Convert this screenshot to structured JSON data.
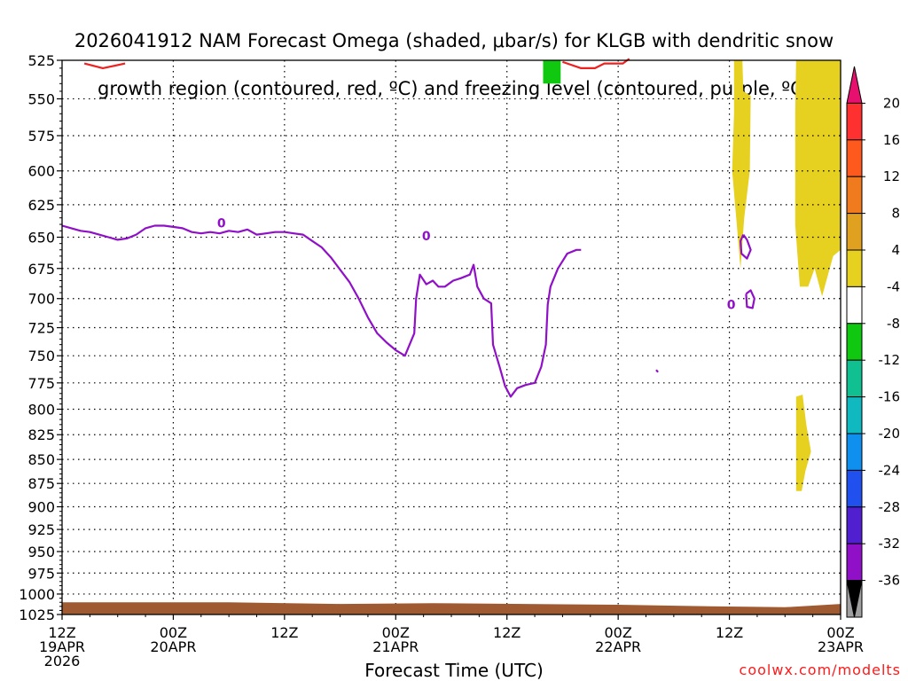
{
  "title": {
    "line1": "2026041912 NAM Forecast Omega (shaded, μbar/s) for KLGB with dendritic snow",
    "line2": "growth region (contoured, red, ºC) and freezing level (contoured, purple, ºC)"
  },
  "xlabel": "Forecast Time (UTC)",
  "credit": "coolwx.com/modelts",
  "chart_data": {
    "type": "heatmap",
    "title": "2026041912 NAM Forecast Omega (shaded, μbar/s) for KLGB with dendritic snow growth region (contoured, red, ºC) and freezing level (contoured, purple, ºC)",
    "xlabel": "Forecast Time (UTC)",
    "x_unit": "hours from 2026-04-19 12Z",
    "xlim": [
      0,
      84
    ],
    "ylim": [
      1025,
      525
    ],
    "y_scale": "log (pressure, hPa)",
    "grid": true,
    "x_ticks": [
      {
        "hour": 0,
        "label": "12Z",
        "label2": "19APR",
        "label3": "2026"
      },
      {
        "hour": 12,
        "label": "00Z",
        "label2": "20APR",
        "label3": ""
      },
      {
        "hour": 24,
        "label": "12Z",
        "label2": "",
        "label3": ""
      },
      {
        "hour": 36,
        "label": "00Z",
        "label2": "21APR",
        "label3": ""
      },
      {
        "hour": 48,
        "label": "12Z",
        "label2": "",
        "label3": ""
      },
      {
        "hour": 60,
        "label": "00Z",
        "label2": "22APR",
        "label3": ""
      },
      {
        "hour": 72,
        "label": "12Z",
        "label2": "",
        "label3": ""
      },
      {
        "hour": 84,
        "label": "00Z",
        "label2": "23APR",
        "label3": ""
      }
    ],
    "y_ticks": [
      525,
      550,
      575,
      600,
      625,
      650,
      675,
      700,
      725,
      750,
      775,
      800,
      825,
      850,
      875,
      900,
      925,
      950,
      975,
      1000,
      1025
    ],
    "colorbar": {
      "labels": [
        "20",
        "16",
        "12",
        "8",
        "4",
        "-4",
        "-8",
        "-12",
        "-16",
        "-20",
        "-24",
        "-28",
        "-32",
        "-36"
      ],
      "colors": [
        "#e8106e",
        "#ff3030",
        "#ff5a1e",
        "#f07a1e",
        "#e0a020",
        "#e6d020",
        "#ffffff",
        "#10c810",
        "#10c090",
        "#10b8c0",
        "#1090ee",
        "#2050ee",
        "#5020d0",
        "#9010c8",
        "#a0a0a0",
        "#000000"
      ]
    },
    "shaded_regions": [
      {
        "category": "-4 to -8",
        "color": "#10c810",
        "points": [
          [
            51.9,
            525
          ],
          [
            53.8,
            525
          ],
          [
            53.8,
            540
          ],
          [
            51.9,
            540
          ]
        ]
      },
      {
        "category": "4 to 8",
        "color": "#e6d020",
        "points": [
          [
            72.5,
            525
          ],
          [
            73.4,
            525
          ],
          [
            73.5,
            545
          ],
          [
            74.3,
            548
          ],
          [
            74.2,
            600
          ],
          [
            73.6,
            635
          ],
          [
            73.2,
            675
          ],
          [
            72.8,
            640
          ],
          [
            72.3,
            600
          ],
          [
            72.5,
            560
          ]
        ]
      },
      {
        "category": "4 to 8",
        "color": "#e6d020",
        "points": [
          [
            79.2,
            525
          ],
          [
            84,
            525
          ],
          [
            84,
            660
          ],
          [
            83.2,
            665
          ],
          [
            82,
            698
          ],
          [
            81.2,
            675
          ],
          [
            80.5,
            690
          ],
          [
            79.6,
            690
          ],
          [
            79.1,
            640
          ],
          [
            79.1,
            560
          ]
        ]
      },
      {
        "category": "4 to 8",
        "color": "#e6d020",
        "points": [
          [
            79.2,
            788
          ],
          [
            79.9,
            786
          ],
          [
            80.3,
            815
          ],
          [
            80.8,
            842
          ],
          [
            80.2,
            862
          ],
          [
            79.8,
            883
          ],
          [
            79.2,
            883
          ]
        ]
      }
    ],
    "series": [
      {
        "name": "",
        "color": "#ee2020",
        "values": [
          [
            2.4,
            527
          ],
          [
            4.4,
            530
          ],
          [
            6.8,
            527
          ]
        ]
      },
      {
        "name": "",
        "color": "#ee2020",
        "values": [
          [
            54,
            526
          ],
          [
            56,
            530
          ],
          [
            57.5,
            530
          ],
          [
            58.5,
            527
          ],
          [
            59.5,
            527
          ],
          [
            60.5,
            527
          ],
          [
            61.2,
            524
          ]
        ]
      },
      {
        "name": "",
        "color": "#9010c8",
        "values": [
          [
            0,
            641
          ],
          [
            1,
            643
          ],
          [
            2,
            645
          ],
          [
            3,
            646
          ],
          [
            4,
            648
          ],
          [
            5,
            650
          ],
          [
            6,
            652
          ],
          [
            7,
            651
          ],
          [
            8,
            648
          ],
          [
            9,
            643
          ],
          [
            10,
            641
          ],
          [
            11,
            641
          ],
          [
            12,
            642
          ],
          [
            13,
            643
          ],
          [
            14,
            646
          ],
          [
            15,
            647
          ],
          [
            16,
            646
          ],
          [
            17,
            647
          ],
          [
            18,
            645
          ],
          [
            19,
            646
          ],
          [
            20,
            644
          ],
          [
            21,
            648
          ],
          [
            22,
            647
          ],
          [
            23,
            646
          ],
          [
            24,
            646
          ],
          [
            25,
            647
          ],
          [
            26,
            648
          ],
          [
            27,
            653
          ],
          [
            28,
            658
          ],
          [
            29,
            666
          ],
          [
            30,
            676
          ],
          [
            31,
            686
          ],
          [
            32,
            700
          ],
          [
            33,
            716
          ],
          [
            34,
            730
          ],
          [
            35,
            738
          ],
          [
            36,
            745
          ],
          [
            37,
            750
          ],
          [
            38,
            730
          ],
          [
            38.2,
            700
          ],
          [
            38.6,
            680
          ],
          [
            39.3,
            688
          ],
          [
            40,
            685
          ],
          [
            40.6,
            690
          ],
          [
            41.3,
            690
          ],
          [
            42.2,
            685
          ],
          [
            43,
            683
          ],
          [
            44,
            680
          ],
          [
            44.4,
            672
          ],
          [
            44.8,
            690
          ],
          [
            45.5,
            700
          ],
          [
            46.3,
            704
          ],
          [
            46.5,
            740
          ],
          [
            47.2,
            760
          ],
          [
            47.8,
            778
          ],
          [
            48.4,
            788
          ],
          [
            49.1,
            780
          ],
          [
            50,
            777
          ],
          [
            51,
            775
          ],
          [
            51.7,
            760
          ],
          [
            52.2,
            740
          ],
          [
            52.4,
            705
          ],
          [
            52.7,
            690
          ],
          [
            53.5,
            675
          ],
          [
            54.5,
            663
          ],
          [
            55.5,
            660
          ],
          [
            56,
            660
          ]
        ]
      },
      {
        "name": "",
        "color": "#9010c8",
        "values": [
          [
            73.5,
            648
          ],
          [
            73.2,
            653
          ],
          [
            73.3,
            663
          ],
          [
            73.9,
            667
          ],
          [
            74.3,
            660
          ],
          [
            73.9,
            652
          ],
          [
            73.5,
            648
          ]
        ]
      },
      {
        "name": "",
        "color": "#9010c8",
        "values": [
          [
            73.8,
            696
          ],
          [
            74.3,
            693
          ],
          [
            74.7,
            700
          ],
          [
            74.5,
            708
          ],
          [
            73.9,
            707
          ],
          [
            73.8,
            696
          ]
        ]
      },
      {
        "name": "",
        "color": "#9010c8",
        "values": [
          [
            64.1,
            763
          ],
          [
            64.3,
            765
          ]
        ]
      }
    ],
    "contour_labels": [
      {
        "text": "0",
        "x": 17.2,
        "y": 639,
        "color": "#9010c8"
      },
      {
        "text": "0",
        "x": 39.3,
        "y": 649,
        "color": "#9010c8"
      },
      {
        "text": "0",
        "x": 72.2,
        "y": 705,
        "color": "#9010c8"
      }
    ],
    "ground_fill": {
      "color": "#a05a32",
      "top_pressure_start": 1010,
      "top_pressure_end": 1015
    }
  }
}
